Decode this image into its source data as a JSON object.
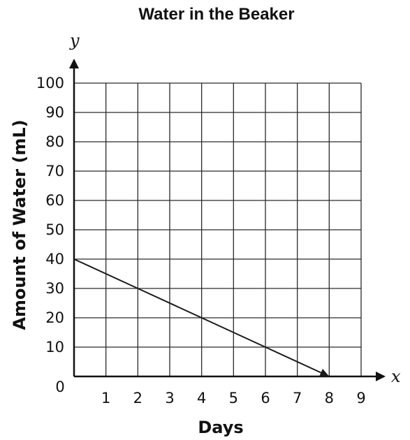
{
  "chart_data": {
    "type": "line",
    "title": "Water in the Beaker",
    "xlabel": "Days",
    "ylabel": "Amount of Water (mL)",
    "x_axis_letter": "x",
    "y_axis_letter": "y",
    "xlim": [
      0,
      9
    ],
    "ylim": [
      0,
      100
    ],
    "origin_label": "0",
    "x_ticks": [
      "1",
      "2",
      "3",
      "4",
      "5",
      "6",
      "7",
      "8",
      "9"
    ],
    "y_ticks": [
      "10",
      "20",
      "30",
      "40",
      "50",
      "60",
      "70",
      "80",
      "90",
      "100"
    ],
    "grid": true,
    "series": [
      {
        "x": [
          0,
          2,
          4,
          6,
          8
        ],
        "y": [
          40,
          30,
          20,
          10,
          0
        ]
      }
    ],
    "colors": {
      "line": "#1a1a1a",
      "grid": "#2a2a2a",
      "axis": "#111111"
    }
  }
}
